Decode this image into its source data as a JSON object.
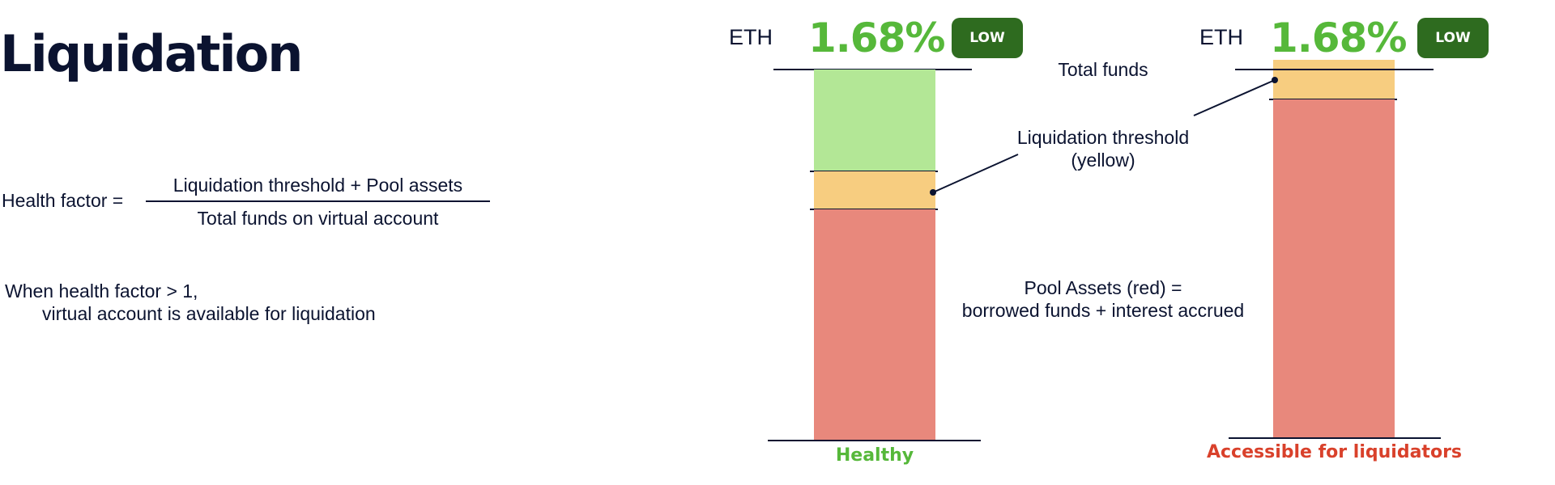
{
  "title": "Liquidation",
  "formula": {
    "label": "Health factor =",
    "numerator": "Liquidation threshold + Pool assets",
    "denominator": "Total funds on virtual account"
  },
  "note": {
    "line1": "When health factor > 1,",
    "line2": "virtual account is available for liquidation"
  },
  "columns": [
    {
      "ticker": "ETH",
      "rate": "1.68%",
      "badge": "LOW",
      "caption": "Healthy",
      "segments": {
        "green": "#b3e796",
        "yellow": "#f7cd80",
        "red": "#e8887c"
      }
    },
    {
      "ticker": "ETH",
      "rate": "1.68%",
      "badge": "LOW",
      "caption": "Accessible for liquidators",
      "segments": {
        "yellow": "#f7cd80",
        "red": "#e8887c"
      }
    }
  ],
  "annotations": {
    "total_funds": "Total funds",
    "threshold_line1": "Liquidation threshold",
    "threshold_line2": "(yellow)",
    "pool_line1": "Pool Assets (red) =",
    "pool_line2": "borrowed funds + interest accrued"
  }
}
